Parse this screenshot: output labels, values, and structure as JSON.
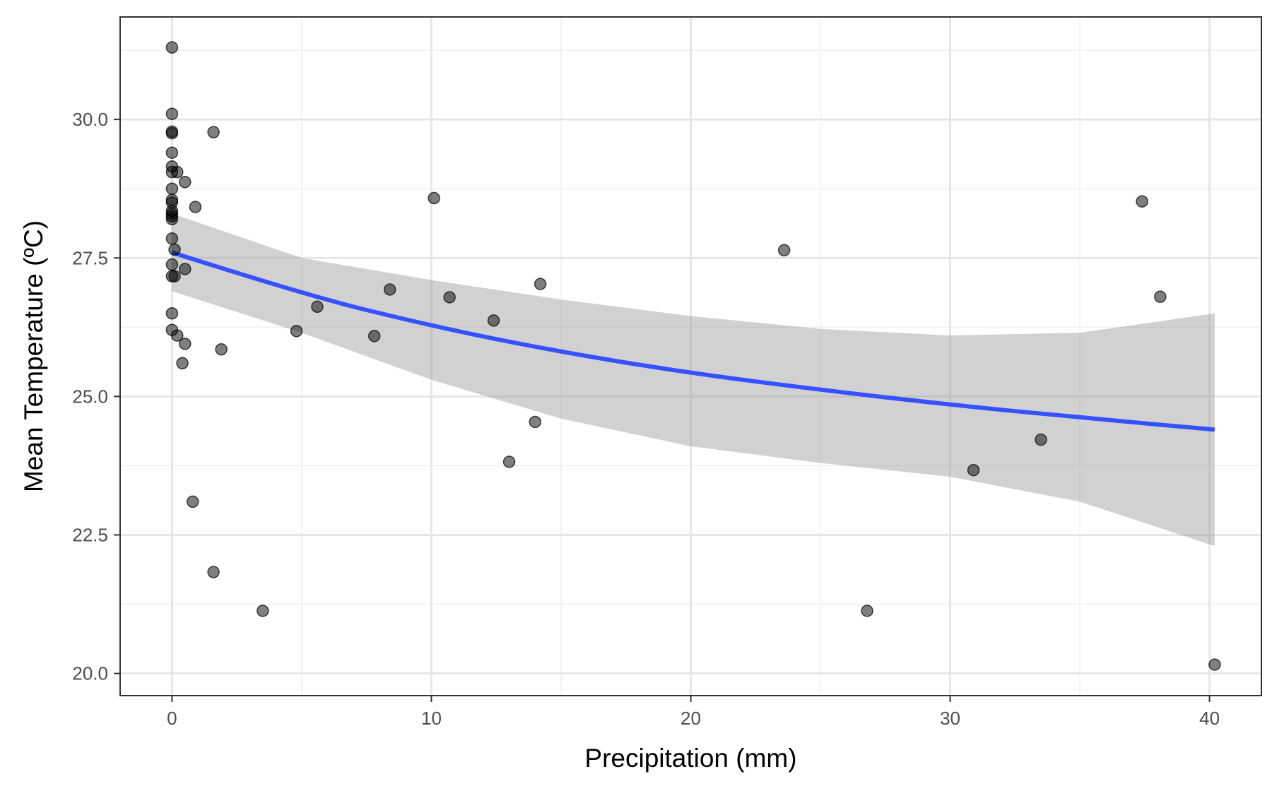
{
  "chart_data": {
    "type": "scatter",
    "title": "",
    "xlabel": "Precipitation (mm)",
    "ylabel": "Mean Temperature (ºC)",
    "xlim": [
      -2.0,
      42.0
    ],
    "ylim": [
      19.6,
      31.85
    ],
    "x_ticks": [
      0,
      10,
      20,
      30,
      40
    ],
    "x_tick_labels": [
      "0",
      "10",
      "20",
      "30",
      "40"
    ],
    "y_ticks": [
      20.0,
      22.5,
      25.0,
      27.5,
      30.0
    ],
    "y_tick_labels": [
      "20.0",
      "22.5",
      "25.0",
      "27.5",
      "30.0"
    ],
    "grid": true,
    "legend": "none",
    "points": [
      {
        "x": 0,
        "y": 31.3
      },
      {
        "x": 0,
        "y": 30.1
      },
      {
        "x": 0,
        "y": 29.78
      },
      {
        "x": 0,
        "y": 29.75
      },
      {
        "x": 0,
        "y": 29.4
      },
      {
        "x": 0,
        "y": 29.15
      },
      {
        "x": 0,
        "y": 29.05
      },
      {
        "x": 0,
        "y": 28.75
      },
      {
        "x": 0,
        "y": 28.55
      },
      {
        "x": 0,
        "y": 28.5
      },
      {
        "x": 0,
        "y": 28.35
      },
      {
        "x": 0,
        "y": 28.3
      },
      {
        "x": 0,
        "y": 28.25
      },
      {
        "x": 0,
        "y": 28.2
      },
      {
        "x": 0,
        "y": 27.85
      },
      {
        "x": 0,
        "y": 27.38
      },
      {
        "x": 0,
        "y": 27.17
      },
      {
        "x": 0,
        "y": 26.5
      },
      {
        "x": 0,
        "y": 26.2
      },
      {
        "x": 0.1,
        "y": 27.65
      },
      {
        "x": 0.1,
        "y": 27.17
      },
      {
        "x": 0.2,
        "y": 29.05
      },
      {
        "x": 0.2,
        "y": 26.1
      },
      {
        "x": 0.4,
        "y": 25.6
      },
      {
        "x": 0.5,
        "y": 28.87
      },
      {
        "x": 0.5,
        "y": 27.3
      },
      {
        "x": 0.5,
        "y": 25.95
      },
      {
        "x": 0.8,
        "y": 23.1
      },
      {
        "x": 0.9,
        "y": 28.42
      },
      {
        "x": 1.6,
        "y": 29.77
      },
      {
        "x": 1.6,
        "y": 21.83
      },
      {
        "x": 1.9,
        "y": 25.85
      },
      {
        "x": 3.5,
        "y": 21.13
      },
      {
        "x": 4.8,
        "y": 26.18
      },
      {
        "x": 5.6,
        "y": 26.62
      },
      {
        "x": 7.8,
        "y": 26.09
      },
      {
        "x": 8.4,
        "y": 26.93
      },
      {
        "x": 10.1,
        "y": 28.58
      },
      {
        "x": 10.7,
        "y": 26.79
      },
      {
        "x": 12.4,
        "y": 26.37
      },
      {
        "x": 13.0,
        "y": 23.82
      },
      {
        "x": 14.0,
        "y": 24.54
      },
      {
        "x": 14.2,
        "y": 27.03
      },
      {
        "x": 23.6,
        "y": 27.64
      },
      {
        "x": 26.8,
        "y": 21.13
      },
      {
        "x": 30.9,
        "y": 23.67
      },
      {
        "x": 33.5,
        "y": 24.22
      },
      {
        "x": 37.4,
        "y": 28.52
      },
      {
        "x": 38.1,
        "y": 26.8
      },
      {
        "x": 40.2,
        "y": 20.16
      }
    ],
    "smooth": {
      "x": [
        0,
        5,
        10,
        15,
        20,
        25,
        30,
        35,
        40.2
      ],
      "y": [
        27.6,
        26.85,
        26.27,
        25.8,
        25.42,
        25.12,
        24.85,
        24.62,
        24.4
      ],
      "lower": [
        26.9,
        26.15,
        25.3,
        24.6,
        24.1,
        23.8,
        23.55,
        23.1,
        22.3
      ],
      "upper": [
        28.3,
        27.5,
        27.1,
        26.75,
        26.45,
        26.22,
        26.1,
        26.15,
        26.5
      ]
    },
    "colors": {
      "points": "#000000",
      "line": "#3452ff",
      "ribbon": "#999999",
      "panel_border": "#333333"
    }
  }
}
